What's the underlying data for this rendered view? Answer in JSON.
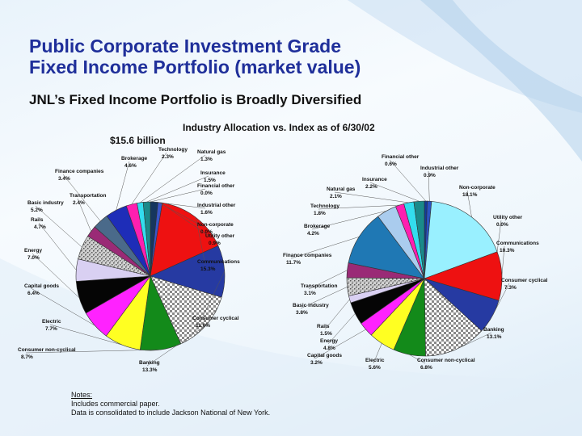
{
  "slide": {
    "title_line1": "Public Corporate Investment Grade",
    "title_line2": "Fixed Income Portfolio (market value)",
    "subtitle": "JNL’s Fixed Income Portfolio is Broadly Diversified",
    "chart_heading": "Industry Allocation vs. Index as of 6/30/02",
    "portfolio_total": "$15.6 billion",
    "notes_heading": "Notes:",
    "notes": [
      "Includes commercial paper.",
      "Data is consolidated to include Jackson National of New York."
    ]
  },
  "chart_data": [
    {
      "type": "pie",
      "title": "$15.6 billion",
      "slices": [
        {
          "label": "Financial other",
          "value": 0.0,
          "value_text": "0.0%",
          "color": "#1a3a9c"
        },
        {
          "label": "Industrial other",
          "value": 1.6,
          "value_text": "1.6%",
          "color": "#16365e"
        },
        {
          "label": "Non-corporate",
          "value": 0.0,
          "value_text": "0.0%",
          "color": "#2f6fb0"
        },
        {
          "label": "Utility other",
          "value": 0.9,
          "value_text": "0.9%",
          "color": "#3a56c8"
        },
        {
          "label": "Communications",
          "value": 15.3,
          "value_text": "15.3%",
          "color": "#ee1111"
        },
        {
          "label": "Consumer cyclical",
          "value": 11.0,
          "value_text": "11.0%",
          "color": "#263aa2"
        },
        {
          "label": "Banking",
          "value": 13.3,
          "value_text": "13.3%",
          "color": "#d9d9d9",
          "pattern": "checker"
        },
        {
          "label": "Consumer non-cyclical",
          "value": 8.7,
          "value_text": "8.7%",
          "color": "#138a1a"
        },
        {
          "label": "Electric",
          "value": 7.7,
          "value_text": "7.7%",
          "color": "#ffff22"
        },
        {
          "label": "Capital goods",
          "value": 6.4,
          "value_text": "6.4%",
          "color": "#ff22ff"
        },
        {
          "label": "Energy",
          "value": 7.0,
          "value_text": "7.0%",
          "color": "#050505"
        },
        {
          "label": "Rails",
          "value": 4.7,
          "value_text": "4.7%",
          "color": "#d9d0f2"
        },
        {
          "label": "Basic industry",
          "value": 5.2,
          "value_text": "5.2%",
          "color": "#bdbdbd",
          "pattern": "speckle"
        },
        {
          "label": "Transportation",
          "value": 2.4,
          "value_text": "2.4%",
          "color": "#9a2a76"
        },
        {
          "label": "Finance companies",
          "value": 3.4,
          "value_text": "3.4%",
          "color": "#4a6a8a"
        },
        {
          "label": "Brokerage",
          "value": 4.6,
          "value_text": "4.6%",
          "color": "#1e2db8"
        },
        {
          "label": "Technology",
          "value": 2.3,
          "value_text": "2.3%",
          "color": "#ff1fb0"
        },
        {
          "label": "Natural gas",
          "value": 1.3,
          "value_text": "1.3%",
          "color": "#33ddee"
        },
        {
          "label": "Insurance",
          "value": 1.5,
          "value_text": "1.5%",
          "color": "#1a8a8a"
        }
      ]
    },
    {
      "type": "pie",
      "title": "Index",
      "slices": [
        {
          "label": "Financial other",
          "value": 0.6,
          "value_text": "0.6%",
          "color": "#123a9a"
        },
        {
          "label": "Industrial other",
          "value": 0.9,
          "value_text": "0.9%",
          "color": "#2a52c0"
        },
        {
          "label": "Non-corporate",
          "value": 18.1,
          "value_text": "18.1%",
          "color": "#99f0ff"
        },
        {
          "label": "Utility other",
          "value": 0.0,
          "value_text": "0.0%",
          "color": "#3366cc"
        },
        {
          "label": "Communications",
          "value": 10.3,
          "value_text": "10.3%",
          "color": "#ee1111"
        },
        {
          "label": "Consumer cyclical",
          "value": 7.3,
          "value_text": "7.3%",
          "color": "#263aa2"
        },
        {
          "label": "Banking",
          "value": 13.1,
          "value_text": "13.1%",
          "color": "#d9d9d9",
          "pattern": "checker"
        },
        {
          "label": "Consumer non-cyclical",
          "value": 6.8,
          "value_text": "6.8%",
          "color": "#138a1a"
        },
        {
          "label": "Electric",
          "value": 5.6,
          "value_text": "5.6%",
          "color": "#ffff22"
        },
        {
          "label": "Capital goods",
          "value": 3.2,
          "value_text": "3.2%",
          "color": "#ff22ff"
        },
        {
          "label": "Energy",
          "value": 4.8,
          "value_text": "4.8%",
          "color": "#050505"
        },
        {
          "label": "Rails",
          "value": 1.5,
          "value_text": "1.5%",
          "color": "#d9d0f2"
        },
        {
          "label": "Basic industry",
          "value": 3.8,
          "value_text": "3.8%",
          "color": "#bdbdbd",
          "pattern": "speckle"
        },
        {
          "label": "Transportation",
          "value": 3.1,
          "value_text": "3.1%",
          "color": "#9a2a76"
        },
        {
          "label": "Finance companies",
          "value": 11.7,
          "value_text": "11.7%",
          "color": "#1f78b4"
        },
        {
          "label": "Brokerage",
          "value": 4.2,
          "value_text": "4.2%",
          "color": "#aaccee"
        },
        {
          "label": "Technology",
          "value": 1.8,
          "value_text": "1.8%",
          "color": "#ff1fb0"
        },
        {
          "label": "Natural gas",
          "value": 2.1,
          "value_text": "2.1%",
          "color": "#33ddee"
        },
        {
          "label": "Insurance",
          "value": 2.2,
          "value_text": "2.2%",
          "color": "#1a8a8a"
        }
      ]
    }
  ]
}
